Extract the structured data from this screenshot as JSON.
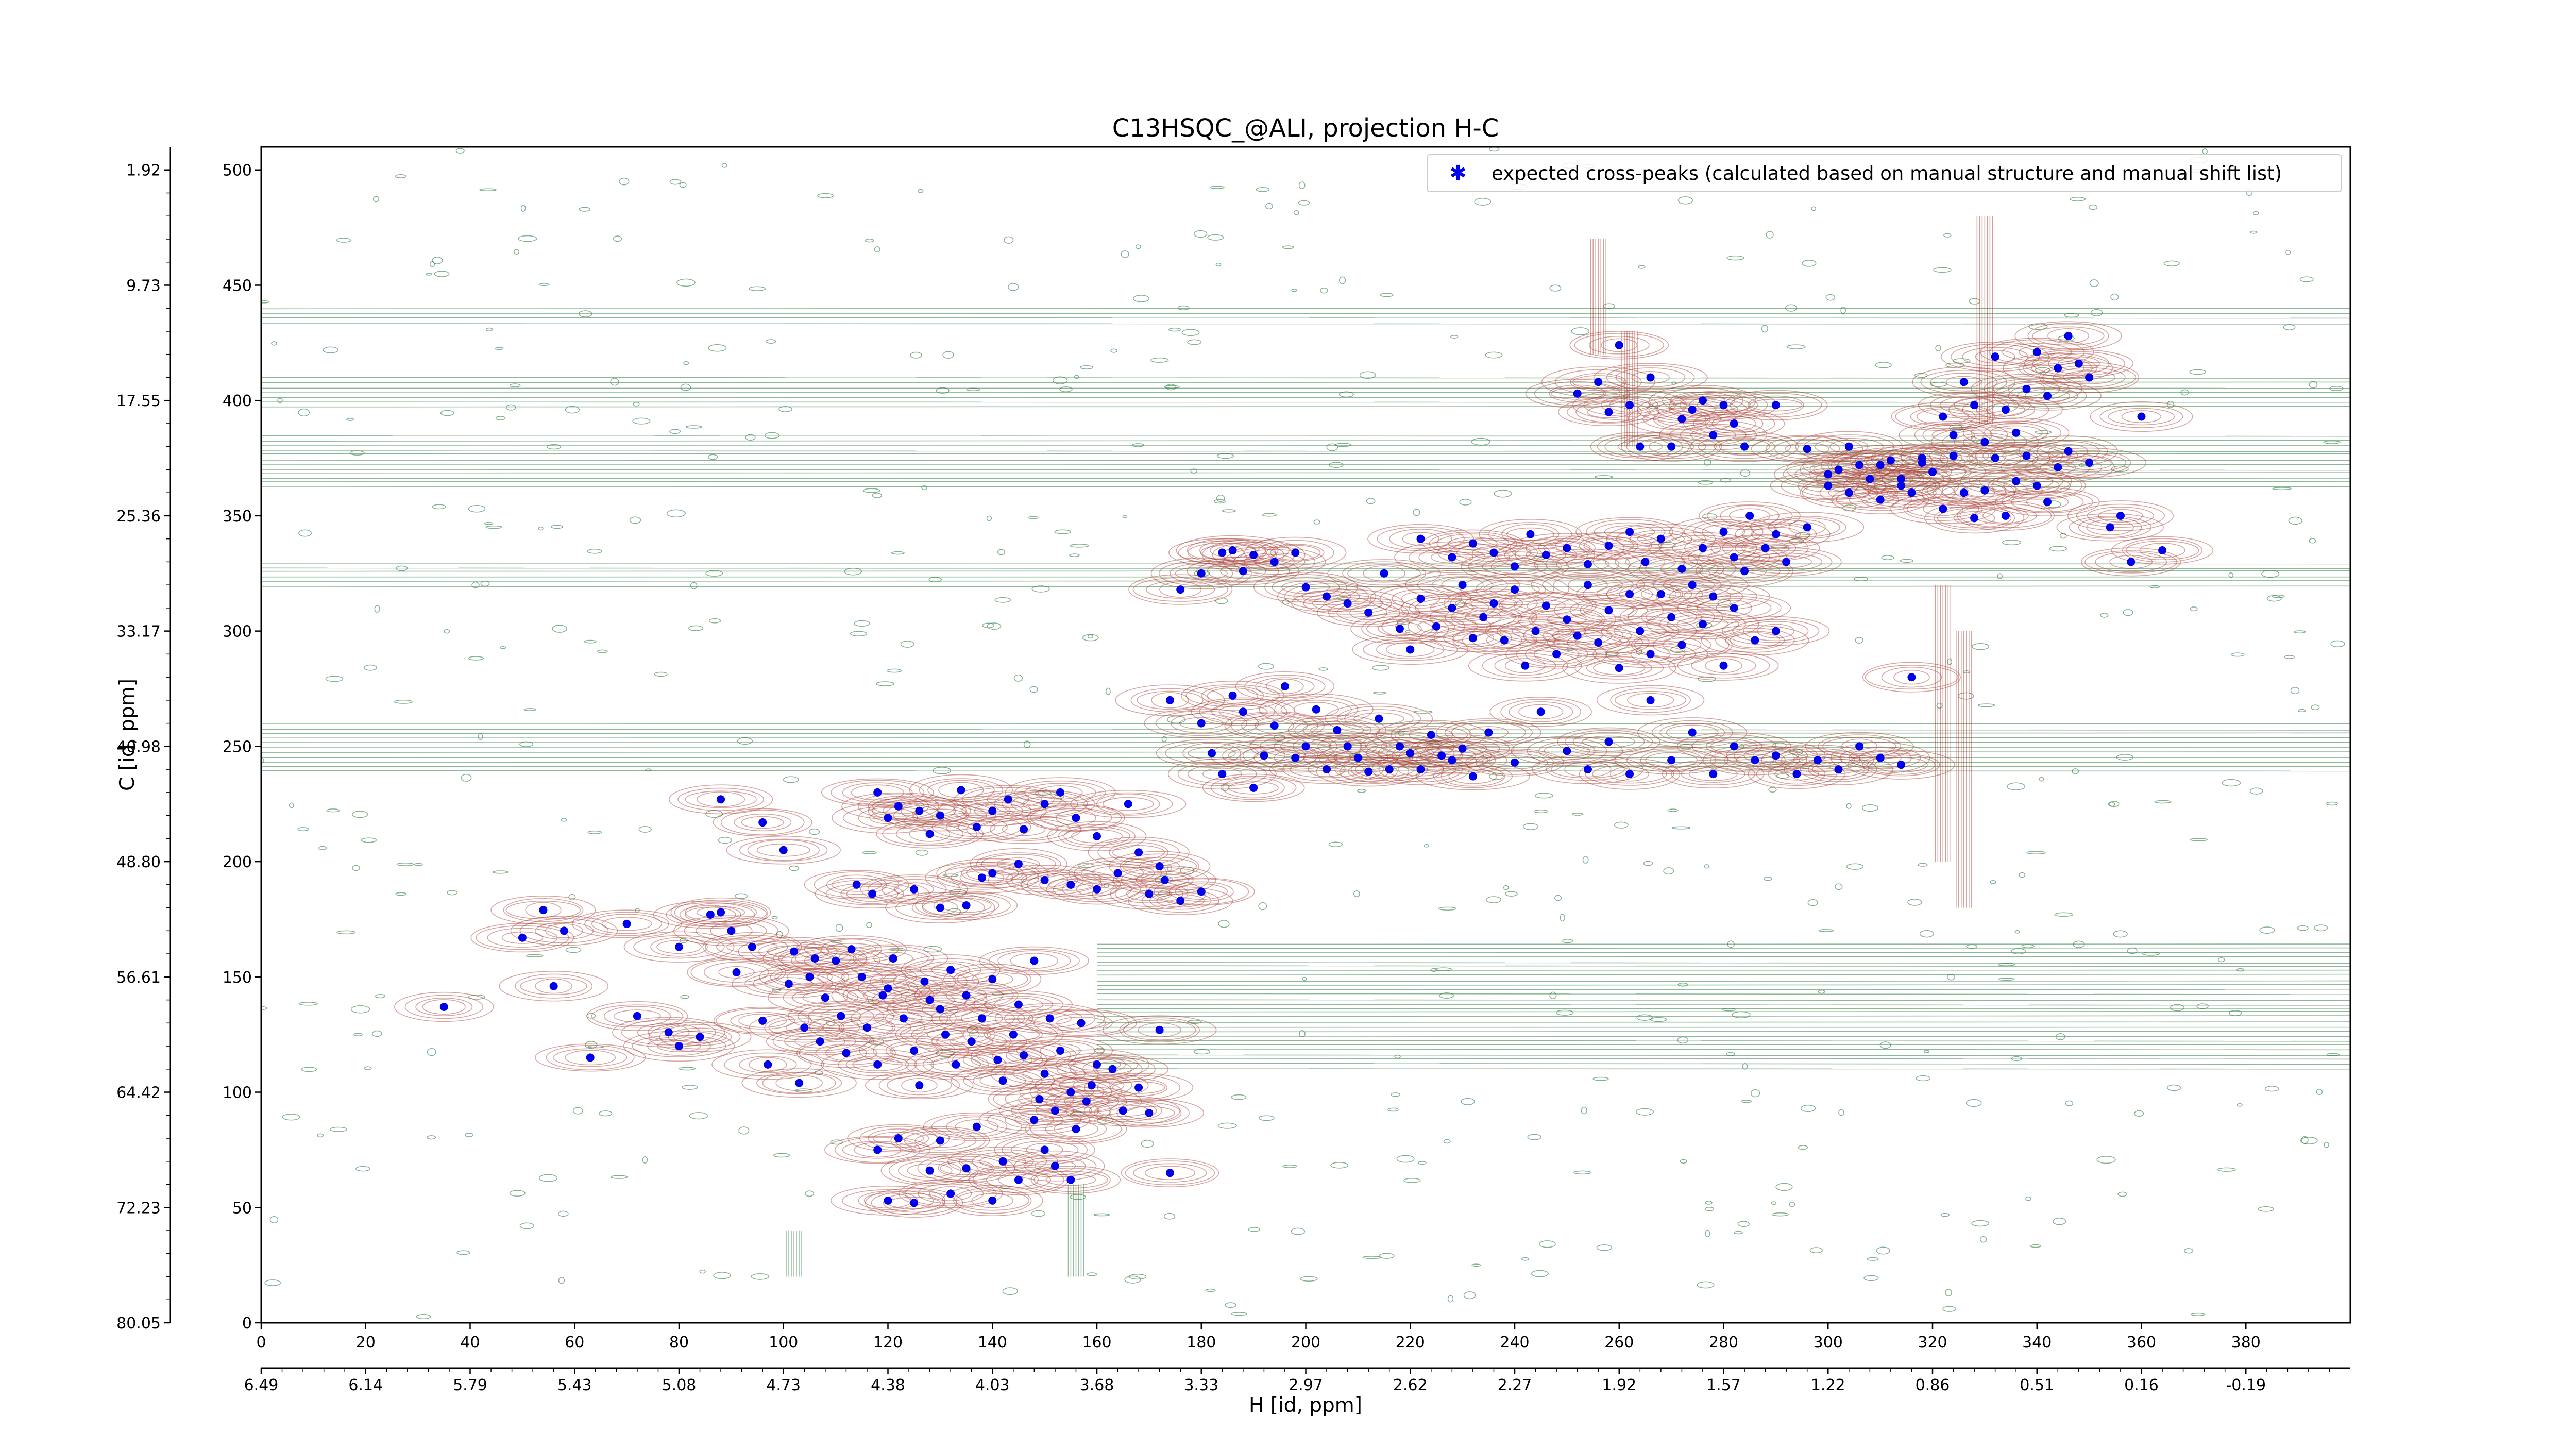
{
  "chart_data": {
    "type": "scatter",
    "title": "C13HSQC_@ALI, projection H-C",
    "xlabel": "H [id, ppm]",
    "ylabel": "C [id, ppm]",
    "x_index_ticks": [
      "0",
      "20",
      "40",
      "60",
      "80",
      "100",
      "120",
      "140",
      "160",
      "180",
      "200",
      "220",
      "240",
      "260",
      "280",
      "300",
      "320",
      "340",
      "360",
      "380"
    ],
    "x_ppm_ticks": [
      "6.49",
      "6.14",
      "5.79",
      "5.43",
      "5.08",
      "4.73",
      "4.38",
      "4.03",
      "3.68",
      "3.33",
      "2.97",
      "2.62",
      "2.27",
      "1.92",
      "1.57",
      "1.22",
      "0.86",
      "0.51",
      "0.16",
      "-0.19"
    ],
    "y_index_ticks": [
      "0",
      "50",
      "100",
      "150",
      "200",
      "250",
      "300",
      "350",
      "400",
      "450",
      "500"
    ],
    "y_ppm_ticks": [
      "80.05",
      "72.23",
      "64.42",
      "56.61",
      "48.80",
      "40.98",
      "33.17",
      "25.36",
      "17.55",
      "9.73",
      "1.92"
    ],
    "xlim": [
      0,
      400
    ],
    "ylim": [
      0,
      510
    ],
    "legend_position": "top-right",
    "colors": {
      "peaks": "#0000ee",
      "positive_contour": "#a8392e",
      "negative_contour": "#2e7d3e"
    },
    "series": [
      {
        "name": "expected cross-peaks (calculated based on manual structure and manual shift list)",
        "points": [
          [
            35,
            137
          ],
          [
            50,
            167
          ],
          [
            54,
            179
          ],
          [
            56,
            146
          ],
          [
            58,
            170
          ],
          [
            63,
            115
          ],
          [
            70,
            173
          ],
          [
            72,
            133
          ],
          [
            80,
            163
          ],
          [
            78,
            126
          ],
          [
            80,
            120
          ],
          [
            84,
            124
          ],
          [
            86,
            177
          ],
          [
            88,
            178
          ],
          [
            90,
            170
          ],
          [
            91,
            152
          ],
          [
            94,
            163
          ],
          [
            96,
            131
          ],
          [
            97,
            112
          ],
          [
            101,
            147
          ],
          [
            102,
            161
          ],
          [
            103,
            104
          ],
          [
            104,
            128
          ],
          [
            105,
            150
          ],
          [
            106,
            158
          ],
          [
            107,
            122
          ],
          [
            108,
            141
          ],
          [
            110,
            157
          ],
          [
            111,
            133
          ],
          [
            112,
            117
          ],
          [
            113,
            162
          ],
          [
            115,
            150
          ],
          [
            116,
            128
          ],
          [
            118,
            112
          ],
          [
            119,
            142
          ],
          [
            120,
            145
          ],
          [
            121,
            158
          ],
          [
            123,
            132
          ],
          [
            125,
            118
          ],
          [
            126,
            103
          ],
          [
            127,
            148
          ],
          [
            128,
            140
          ],
          [
            130,
            136
          ],
          [
            131,
            125
          ],
          [
            132,
            153
          ],
          [
            133,
            112
          ],
          [
            135,
            142
          ],
          [
            136,
            122
          ],
          [
            138,
            132
          ],
          [
            140,
            149
          ],
          [
            141,
            114
          ],
          [
            142,
            105
          ],
          [
            144,
            125
          ],
          [
            145,
            138
          ],
          [
            146,
            116
          ],
          [
            148,
            157
          ],
          [
            149,
            97
          ],
          [
            150,
            108
          ],
          [
            151,
            132
          ],
          [
            152,
            92
          ],
          [
            153,
            118
          ],
          [
            155,
            100
          ],
          [
            156,
            84
          ],
          [
            157,
            130
          ],
          [
            158,
            96
          ],
          [
            159,
            103
          ],
          [
            160,
            112
          ],
          [
            163,
            110
          ],
          [
            165,
            92
          ],
          [
            168,
            102
          ],
          [
            170,
            91
          ],
          [
            172,
            127
          ],
          [
            174,
            65
          ],
          [
            118,
            75
          ],
          [
            120,
            53
          ],
          [
            122,
            80
          ],
          [
            125,
            52
          ],
          [
            128,
            66
          ],
          [
            130,
            79
          ],
          [
            132,
            56
          ],
          [
            135,
            67
          ],
          [
            137,
            85
          ],
          [
            140,
            53
          ],
          [
            142,
            70
          ],
          [
            145,
            62
          ],
          [
            148,
            88
          ],
          [
            150,
            75
          ],
          [
            152,
            68
          ],
          [
            155,
            62
          ],
          [
            118,
            230
          ],
          [
            120,
            219
          ],
          [
            122,
            224
          ],
          [
            126,
            222
          ],
          [
            128,
            212
          ],
          [
            130,
            220
          ],
          [
            134,
            231
          ],
          [
            137,
            215
          ],
          [
            140,
            222
          ],
          [
            143,
            227
          ],
          [
            146,
            214
          ],
          [
            150,
            225
          ],
          [
            153,
            230
          ],
          [
            156,
            219
          ],
          [
            160,
            211
          ],
          [
            164,
            195
          ],
          [
            166,
            225
          ],
          [
            170,
            186
          ],
          [
            173,
            192
          ],
          [
            176,
            183
          ],
          [
            180,
            187
          ],
          [
            114,
            190
          ],
          [
            117,
            186
          ],
          [
            125,
            188
          ],
          [
            130,
            180
          ],
          [
            135,
            181
          ],
          [
            138,
            193
          ],
          [
            140,
            195
          ],
          [
            145,
            199
          ],
          [
            150,
            192
          ],
          [
            155,
            190
          ],
          [
            160,
            188
          ],
          [
            168,
            204
          ],
          [
            172,
            198
          ],
          [
            88,
            227
          ],
          [
            96,
            217
          ],
          [
            100,
            205
          ],
          [
            174,
            270
          ],
          [
            180,
            260
          ],
          [
            182,
            247
          ],
          [
            184,
            238
          ],
          [
            186,
            272
          ],
          [
            188,
            265
          ],
          [
            190,
            232
          ],
          [
            192,
            246
          ],
          [
            194,
            259
          ],
          [
            196,
            276
          ],
          [
            198,
            245
          ],
          [
            200,
            250
          ],
          [
            202,
            266
          ],
          [
            204,
            240
          ],
          [
            206,
            257
          ],
          [
            208,
            250
          ],
          [
            210,
            245
          ],
          [
            212,
            239
          ],
          [
            214,
            262
          ],
          [
            216,
            240
          ],
          [
            218,
            250
          ],
          [
            220,
            247
          ],
          [
            222,
            240
          ],
          [
            224,
            255
          ],
          [
            226,
            246
          ],
          [
            228,
            244
          ],
          [
            230,
            249
          ],
          [
            232,
            237
          ],
          [
            235,
            256
          ],
          [
            240,
            243
          ],
          [
            245,
            265
          ],
          [
            250,
            248
          ],
          [
            254,
            240
          ],
          [
            258,
            252
          ],
          [
            262,
            238
          ],
          [
            266,
            270
          ],
          [
            270,
            244
          ],
          [
            274,
            256
          ],
          [
            278,
            238
          ],
          [
            282,
            250
          ],
          [
            286,
            244
          ],
          [
            290,
            246
          ],
          [
            294,
            238
          ],
          [
            298,
            244
          ],
          [
            302,
            240
          ],
          [
            306,
            250
          ],
          [
            310,
            245
          ],
          [
            314,
            242
          ],
          [
            176,
            318
          ],
          [
            180,
            325
          ],
          [
            184,
            334
          ],
          [
            186,
            335
          ],
          [
            188,
            326
          ],
          [
            190,
            333
          ],
          [
            194,
            330
          ],
          [
            198,
            334
          ],
          [
            200,
            319
          ],
          [
            204,
            315
          ],
          [
            208,
            312
          ],
          [
            212,
            308
          ],
          [
            215,
            325
          ],
          [
            218,
            301
          ],
          [
            220,
            292
          ],
          [
            222,
            314
          ],
          [
            225,
            302
          ],
          [
            228,
            310
          ],
          [
            230,
            320
          ],
          [
            232,
            297
          ],
          [
            234,
            306
          ],
          [
            236,
            312
          ],
          [
            238,
            296
          ],
          [
            240,
            318
          ],
          [
            242,
            285
          ],
          [
            244,
            300
          ],
          [
            246,
            311
          ],
          [
            248,
            290
          ],
          [
            250,
            305
          ],
          [
            252,
            298
          ],
          [
            254,
            320
          ],
          [
            256,
            295
          ],
          [
            258,
            309
          ],
          [
            260,
            284
          ],
          [
            262,
            316
          ],
          [
            264,
            300
          ],
          [
            266,
            290
          ],
          [
            268,
            316
          ],
          [
            270,
            306
          ],
          [
            272,
            294
          ],
          [
            274,
            320
          ],
          [
            276,
            303
          ],
          [
            278,
            315
          ],
          [
            280,
            285
          ],
          [
            282,
            310
          ],
          [
            284,
            326
          ],
          [
            286,
            296
          ],
          [
            290,
            300
          ],
          [
            222,
            340
          ],
          [
            228,
            332
          ],
          [
            232,
            338
          ],
          [
            236,
            334
          ],
          [
            240,
            328
          ],
          [
            243,
            342
          ],
          [
            246,
            333
          ],
          [
            250,
            336
          ],
          [
            254,
            329
          ],
          [
            258,
            337
          ],
          [
            262,
            343
          ],
          [
            265,
            330
          ],
          [
            268,
            340
          ],
          [
            272,
            327
          ],
          [
            276,
            336
          ],
          [
            280,
            343
          ],
          [
            282,
            332
          ],
          [
            285,
            350
          ],
          [
            288,
            336
          ],
          [
            290,
            342
          ],
          [
            292,
            330
          ],
          [
            296,
            345
          ],
          [
            300,
            363
          ],
          [
            302,
            370
          ],
          [
            304,
            360
          ],
          [
            306,
            372
          ],
          [
            308,
            366
          ],
          [
            310,
            357
          ],
          [
            312,
            374
          ],
          [
            314,
            363
          ],
          [
            316,
            360
          ],
          [
            318,
            375
          ],
          [
            320,
            369
          ],
          [
            322,
            353
          ],
          [
            324,
            376
          ],
          [
            326,
            360
          ],
          [
            328,
            349
          ],
          [
            330,
            361
          ],
          [
            332,
            375
          ],
          [
            334,
            350
          ],
          [
            336,
            365
          ],
          [
            338,
            376
          ],
          [
            340,
            363
          ],
          [
            342,
            356
          ],
          [
            344,
            371
          ],
          [
            346,
            378
          ],
          [
            350,
            373
          ],
          [
            356,
            350
          ],
          [
            360,
            393
          ],
          [
            364,
            335
          ],
          [
            270,
            380
          ],
          [
            272,
            392
          ],
          [
            274,
            396
          ],
          [
            276,
            400
          ],
          [
            278,
            385
          ],
          [
            280,
            398
          ],
          [
            282,
            390
          ],
          [
            284,
            380
          ],
          [
            290,
            398
          ],
          [
            296,
            379
          ],
          [
            300,
            368
          ],
          [
            304,
            380
          ],
          [
            310,
            372
          ],
          [
            314,
            366
          ],
          [
            318,
            373
          ],
          [
            322,
            393
          ],
          [
            324,
            385
          ],
          [
            326,
            408
          ],
          [
            328,
            398
          ],
          [
            330,
            382
          ],
          [
            332,
            419
          ],
          [
            334,
            396
          ],
          [
            336,
            386
          ],
          [
            338,
            405
          ],
          [
            340,
            421
          ],
          [
            342,
            402
          ],
          [
            344,
            414
          ],
          [
            346,
            428
          ],
          [
            348,
            416
          ],
          [
            350,
            410
          ],
          [
            252,
            403
          ],
          [
            256,
            408
          ],
          [
            258,
            395
          ],
          [
            260,
            424
          ],
          [
            262,
            398
          ],
          [
            264,
            380
          ],
          [
            266,
            410
          ],
          [
            316,
            280
          ],
          [
            354,
            345
          ],
          [
            358,
            330
          ]
        ]
      }
    ]
  }
}
